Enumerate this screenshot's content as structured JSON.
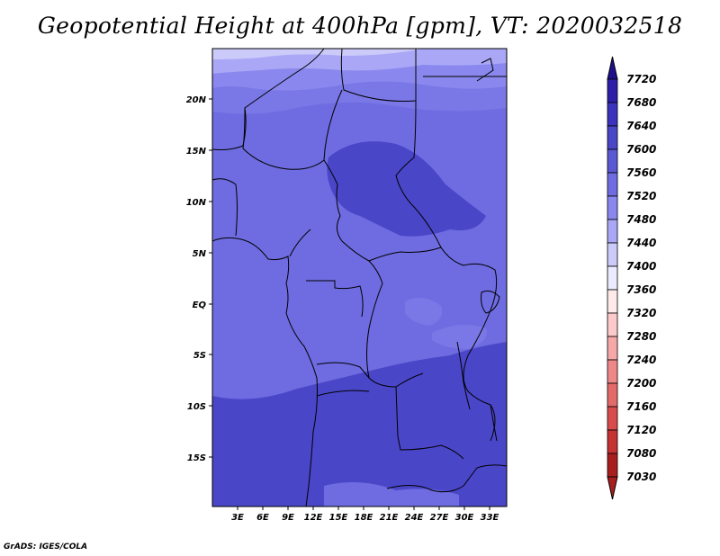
{
  "title": "Geopotential Height at 400hPa [gpm], VT: 2020032518",
  "credit": "GrADS: IGES/COLA",
  "chart_data": {
    "type": "heatmap",
    "variable": "Geopotential Height",
    "level": "400hPa",
    "units": "gpm",
    "valid_time": "2020032518",
    "lon_ticks": [
      "3E",
      "6E",
      "9E",
      "12E",
      "15E",
      "18E",
      "21E",
      "24E",
      "27E",
      "30E",
      "33E"
    ],
    "lat_ticks": [
      "20N",
      "15N",
      "10N",
      "5N",
      "EQ",
      "5S",
      "10S",
      "15S"
    ],
    "colorbar": {
      "labels": [
        "7720",
        "7680",
        "7640",
        "7600",
        "7560",
        "7520",
        "7480",
        "7440",
        "7400",
        "7360",
        "7320",
        "7280",
        "7240",
        "7200",
        "7160",
        "7120",
        "7080",
        "7030"
      ],
      "colors": [
        "#1e0f8f",
        "#2d1fa8",
        "#3c32be",
        "#4a46c8",
        "#5a58d2",
        "#6e6ce0",
        "#8a88ee",
        "#aaa8f6",
        "#cccaf9",
        "#eceaff",
        "#ffeaea",
        "#fccaca",
        "#f6a8a8",
        "#ee8888",
        "#e46a6a",
        "#d84c4c",
        "#c43232",
        "#a81e1e"
      ]
    }
  }
}
